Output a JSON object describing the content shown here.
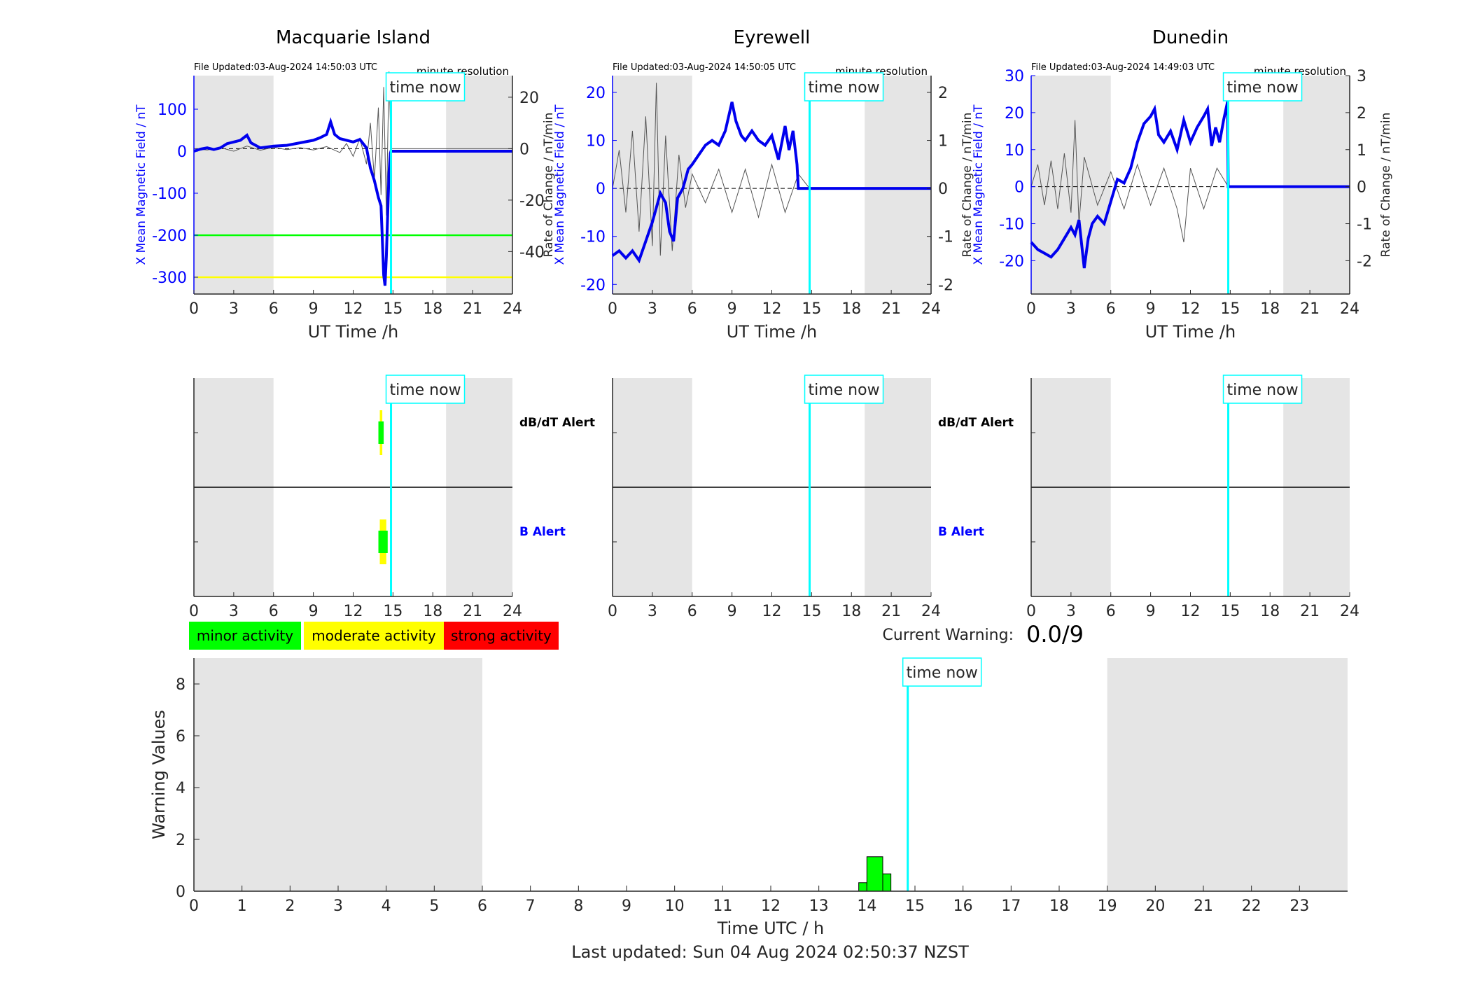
{
  "stations": [
    {
      "name": "Macquarie Island",
      "file_updated": "File Updated:03-Aug-2024 14:50:03 UTC",
      "resolution": "minute resolution",
      "time_now_label": "time now",
      "time_now_h": 14.85,
      "shaded_hours": [
        [
          0,
          6
        ],
        [
          19,
          24
        ]
      ],
      "left_ylabel": "X Mean Magnetic Field / nT",
      "right_ylabel": "Rate of Change / nT/min",
      "left_ylim": [
        -340,
        180
      ],
      "left_ticks": [
        100,
        0,
        -100,
        -200,
        -300
      ],
      "right_ylim": [
        -56.5,
        28.4
      ],
      "right_ticks": [
        20,
        0,
        -20,
        -40
      ],
      "threshold_lines": [
        {
          "value": -200,
          "color": "#00ff00"
        },
        {
          "value": -300,
          "color": "#ffff00"
        }
      ],
      "field_series": [
        [
          0,
          0
        ],
        [
          0.5,
          5
        ],
        [
          1,
          8
        ],
        [
          1.5,
          4
        ],
        [
          2,
          8
        ],
        [
          2.5,
          18
        ],
        [
          3,
          22
        ],
        [
          3.5,
          26
        ],
        [
          4,
          38
        ],
        [
          4.3,
          20
        ],
        [
          5,
          8
        ],
        [
          6,
          12
        ],
        [
          7,
          14
        ],
        [
          8,
          20
        ],
        [
          9,
          26
        ],
        [
          9.5,
          32
        ],
        [
          10,
          40
        ],
        [
          10.3,
          70
        ],
        [
          10.6,
          40
        ],
        [
          11,
          30
        ],
        [
          12,
          22
        ],
        [
          12.5,
          28
        ],
        [
          13,
          8
        ],
        [
          13.3,
          -40
        ],
        [
          13.6,
          -70
        ],
        [
          13.9,
          -110
        ],
        [
          14.1,
          -130
        ],
        [
          14.3,
          -295
        ],
        [
          14.4,
          -320
        ],
        [
          14.5,
          -250
        ],
        [
          14.6,
          -150
        ],
        [
          14.7,
          -50
        ],
        [
          14.8,
          -5
        ],
        [
          14.85,
          0
        ],
        [
          24,
          0
        ]
      ],
      "rate_series": [
        [
          0,
          0
        ],
        [
          1,
          -0.5
        ],
        [
          2,
          0.4
        ],
        [
          3,
          -1
        ],
        [
          4,
          1
        ],
        [
          5,
          -0.6
        ],
        [
          6,
          0.5
        ],
        [
          7,
          -0.4
        ],
        [
          8,
          0.4
        ],
        [
          9,
          -0.5
        ],
        [
          10,
          0.8
        ],
        [
          11,
          -1.5
        ],
        [
          11.5,
          2
        ],
        [
          12,
          -3
        ],
        [
          12.5,
          4
        ],
        [
          13,
          -6
        ],
        [
          13.3,
          10
        ],
        [
          13.6,
          -12
        ],
        [
          13.9,
          16
        ],
        [
          14.1,
          -18
        ],
        [
          14.3,
          24
        ],
        [
          14.5,
          -26
        ],
        [
          14.7,
          30
        ],
        [
          14.85,
          0
        ],
        [
          24,
          0
        ]
      ],
      "x_ticks": [
        0,
        3,
        6,
        9,
        12,
        15,
        18,
        21,
        24
      ],
      "xlabel": "UT Time /h"
    },
    {
      "name": "Eyrewell",
      "file_updated": "File Updated:03-Aug-2024 14:50:05 UTC",
      "resolution": "minute resolution",
      "time_now_label": "time now",
      "time_now_h": 14.85,
      "shaded_hours": [
        [
          0,
          6
        ],
        [
          19,
          24
        ]
      ],
      "left_ylabel": "X Mean Magnetic Field / nT",
      "right_ylabel": "Rate of Change / nT/min",
      "left_ylim": [
        -22,
        23.5
      ],
      "left_ticks": [
        20,
        10,
        0,
        -10,
        -20
      ],
      "right_ylim": [
        -2.2,
        2.35
      ],
      "right_ticks": [
        2,
        1,
        0,
        -1,
        -2
      ],
      "threshold_lines": [],
      "field_series": [
        [
          0,
          -14
        ],
        [
          0.5,
          -13
        ],
        [
          1,
          -14.5
        ],
        [
          1.5,
          -13
        ],
        [
          2,
          -15
        ],
        [
          2.5,
          -11
        ],
        [
          3,
          -7
        ],
        [
          3.3,
          -4
        ],
        [
          3.6,
          -1
        ],
        [
          4,
          -3
        ],
        [
          4.3,
          -9
        ],
        [
          4.6,
          -11
        ],
        [
          4.9,
          -2
        ],
        [
          5.3,
          0
        ],
        [
          5.7,
          4
        ],
        [
          6,
          5
        ],
        [
          6.5,
          7
        ],
        [
          7,
          9
        ],
        [
          7.5,
          10
        ],
        [
          8,
          9
        ],
        [
          8.5,
          12
        ],
        [
          9,
          18
        ],
        [
          9.3,
          14
        ],
        [
          9.7,
          11
        ],
        [
          10,
          10
        ],
        [
          10.5,
          12
        ],
        [
          11,
          10
        ],
        [
          11.5,
          9
        ],
        [
          12,
          11
        ],
        [
          12.5,
          6
        ],
        [
          13,
          13
        ],
        [
          13.3,
          8
        ],
        [
          13.6,
          12
        ],
        [
          13.9,
          5
        ],
        [
          14,
          0
        ],
        [
          14.85,
          0
        ],
        [
          24,
          0
        ]
      ],
      "rate_series": [
        [
          0,
          0
        ],
        [
          0.5,
          0.8
        ],
        [
          1,
          -0.5
        ],
        [
          1.5,
          1.2
        ],
        [
          2,
          -0.9
        ],
        [
          2.5,
          1.5
        ],
        [
          3,
          -1.2
        ],
        [
          3.3,
          2.2
        ],
        [
          3.6,
          -1.4
        ],
        [
          4,
          1.1
        ],
        [
          4.5,
          -1.3
        ],
        [
          5,
          0.7
        ],
        [
          5.5,
          -0.4
        ],
        [
          6,
          0.3
        ],
        [
          7,
          -0.3
        ],
        [
          8,
          0.4
        ],
        [
          9,
          -0.5
        ],
        [
          10,
          0.4
        ],
        [
          11,
          -0.6
        ],
        [
          12,
          0.5
        ],
        [
          13,
          -0.5
        ],
        [
          14,
          0.3
        ],
        [
          14.85,
          0
        ],
        [
          24,
          0
        ]
      ],
      "x_ticks": [
        0,
        3,
        6,
        9,
        12,
        15,
        18,
        21,
        24
      ],
      "xlabel": "UT Time /h"
    },
    {
      "name": "Dunedin",
      "file_updated": "File Updated:03-Aug-2024 14:49:03 UTC",
      "resolution": "minute resolution",
      "time_now_label": "time now",
      "time_now_h": 14.85,
      "shaded_hours": [
        [
          0,
          6
        ],
        [
          19,
          24
        ]
      ],
      "left_ylabel": "X Mean Magnetic Field / nT",
      "right_ylabel": "Rate of Change / nT/min",
      "left_ylim": [
        -29,
        30
      ],
      "left_ticks": [
        30,
        20,
        10,
        0,
        -10,
        -20
      ],
      "right_ylim": [
        -2.9,
        3.0
      ],
      "right_ticks": [
        3,
        2,
        1,
        0,
        -1,
        -2
      ],
      "threshold_lines": [],
      "field_series": [
        [
          0,
          -15
        ],
        [
          0.5,
          -17
        ],
        [
          1,
          -18
        ],
        [
          1.5,
          -19
        ],
        [
          2,
          -17
        ],
        [
          2.5,
          -14
        ],
        [
          3,
          -11
        ],
        [
          3.3,
          -13
        ],
        [
          3.6,
          -9
        ],
        [
          4,
          -22
        ],
        [
          4.3,
          -14
        ],
        [
          4.6,
          -10
        ],
        [
          5,
          -8
        ],
        [
          5.5,
          -10
        ],
        [
          6,
          -4
        ],
        [
          6.5,
          2
        ],
        [
          7,
          1
        ],
        [
          7.5,
          5
        ],
        [
          8,
          12
        ],
        [
          8.5,
          17
        ],
        [
          9,
          19
        ],
        [
          9.3,
          21
        ],
        [
          9.6,
          14
        ],
        [
          10,
          12
        ],
        [
          10.5,
          15
        ],
        [
          11,
          10
        ],
        [
          11.5,
          18
        ],
        [
          12,
          12
        ],
        [
          12.5,
          16
        ],
        [
          13,
          19
        ],
        [
          13.3,
          21
        ],
        [
          13.6,
          11
        ],
        [
          13.9,
          16
        ],
        [
          14.2,
          12
        ],
        [
          14.5,
          18
        ],
        [
          14.8,
          23
        ],
        [
          14.85,
          0
        ],
        [
          24,
          0
        ]
      ],
      "rate_series": [
        [
          0,
          0
        ],
        [
          0.5,
          0.6
        ],
        [
          1,
          -0.5
        ],
        [
          1.5,
          0.7
        ],
        [
          2,
          -0.6
        ],
        [
          2.5,
          0.9
        ],
        [
          3,
          -0.7
        ],
        [
          3.3,
          1.8
        ],
        [
          3.6,
          -1
        ],
        [
          4,
          0.8
        ],
        [
          5,
          -0.5
        ],
        [
          6,
          0.4
        ],
        [
          7,
          -0.6
        ],
        [
          8,
          0.6
        ],
        [
          9,
          -0.5
        ],
        [
          10,
          0.5
        ],
        [
          11,
          -0.6
        ],
        [
          11.5,
          -1.5
        ],
        [
          12,
          0.5
        ],
        [
          13,
          -0.6
        ],
        [
          14,
          0.5
        ],
        [
          14.85,
          0
        ],
        [
          24,
          0
        ]
      ],
      "x_ticks": [
        0,
        3,
        6,
        9,
        12,
        15,
        18,
        21,
        24
      ],
      "xlabel": "UT Time /h"
    }
  ],
  "alerts": {
    "dbdt_label": "dB/dT Alert",
    "b_label": "B Alert",
    "time_now_label": "time now",
    "panels": [
      {
        "dbdt": [
          {
            "start": 13.9,
            "end": 14.3,
            "level": "minor"
          }
        ],
        "b": [
          {
            "start": 13.9,
            "end": 14.6,
            "level": "minor"
          }
        ]
      },
      {
        "dbdt": [],
        "b": []
      },
      {
        "dbdt": [],
        "b": []
      }
    ]
  },
  "legend": {
    "minor": {
      "label": "minor activity",
      "color": "#00ff00"
    },
    "moderate": {
      "label": "moderate activity",
      "color": "#ffff00"
    },
    "strong": {
      "label": "strong activity",
      "color": "#ff0000"
    }
  },
  "current_warning": {
    "label": "Current Warning:",
    "value": "0.0/9"
  },
  "chart_data": {
    "type": "bar",
    "ylabel": "Warning Values",
    "xlabel": "Time UTC / h",
    "ylim": [
      0,
      9
    ],
    "y_ticks": [
      0,
      2,
      4,
      6,
      8
    ],
    "x_ticks": [
      0,
      1,
      2,
      3,
      4,
      5,
      6,
      7,
      8,
      9,
      10,
      11,
      12,
      13,
      14,
      15,
      16,
      17,
      18,
      19,
      20,
      21,
      22,
      23
    ],
    "xlim": [
      0,
      24
    ],
    "shaded_hours": [
      [
        0,
        6
      ],
      [
        19,
        24
      ]
    ],
    "time_now_h": 14.85,
    "time_now_label": "time now",
    "bars": [
      {
        "start": 13.83,
        "end": 14.0,
        "value": 0.33
      },
      {
        "start": 14.0,
        "end": 14.33,
        "value": 1.33
      },
      {
        "start": 14.33,
        "end": 14.5,
        "value": 0.67
      }
    ],
    "bar_color": "#00ff00"
  },
  "footer": "Last updated: Sun 04 Aug 2024 02:50:37 NZST"
}
